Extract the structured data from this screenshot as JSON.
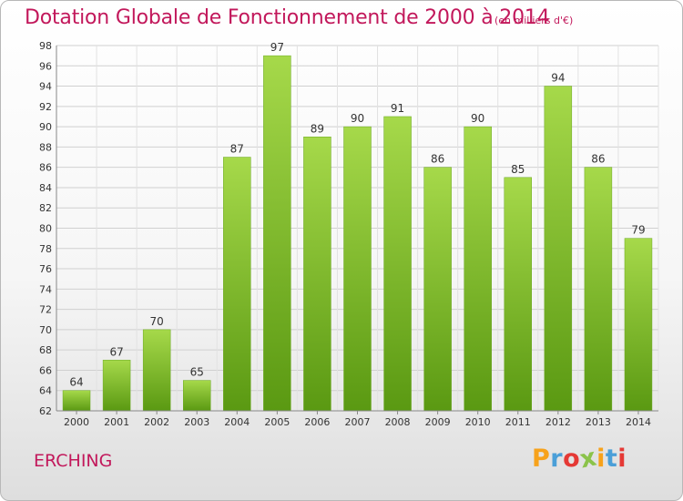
{
  "chart_data": {
    "type": "bar",
    "title": "Dotation Globale de Fonctionnement de 2000 à 2014",
    "subtitle": "(en milliers d'€)",
    "xlabel": "",
    "ylabel": "",
    "categories": [
      "2000",
      "2001",
      "2002",
      "2003",
      "2004",
      "2005",
      "2006",
      "2007",
      "2008",
      "2009",
      "2010",
      "2011",
      "2012",
      "2013",
      "2014"
    ],
    "values": [
      64,
      67,
      70,
      65,
      87,
      97,
      89,
      90,
      91,
      86,
      90,
      85,
      94,
      86,
      79
    ],
    "ylim": [
      62,
      98
    ],
    "yticks": [
      62,
      64,
      66,
      68,
      70,
      72,
      74,
      76,
      78,
      80,
      82,
      84,
      86,
      88,
      90,
      92,
      94,
      96,
      98
    ],
    "grid": true,
    "bar_color": "#7fbf2a"
  },
  "commune": "ERCHING",
  "logo": {
    "letters": [
      "P",
      "r",
      "o",
      "x",
      "i",
      "t",
      "i"
    ],
    "colors": [
      "#f7a21b",
      "#4a9fd8",
      "#e53935",
      "#8bc34a",
      "#f7a21b",
      "#4a9fd8",
      "#e53935"
    ]
  }
}
